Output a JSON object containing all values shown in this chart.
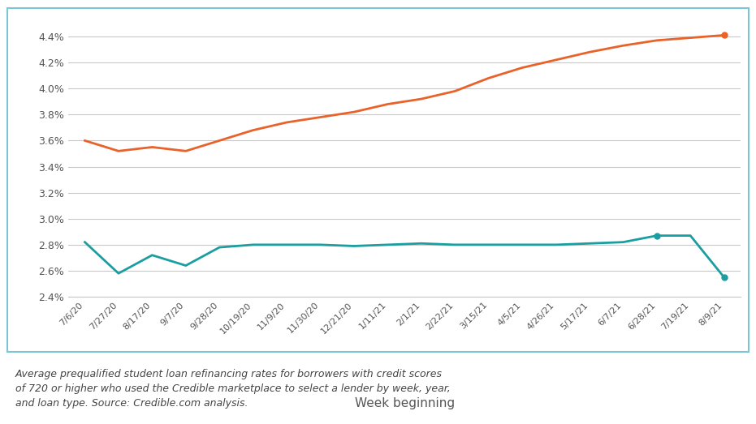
{
  "x_labels": [
    "7/6/20",
    "7/27/20",
    "8/17/20",
    "9/7/20",
    "9/28/20",
    "10/19/20",
    "11/9/20",
    "11/30/20",
    "12/21/20",
    "1/11/21",
    "2/1/21",
    "2/22/21",
    "3/15/21",
    "4/5/21",
    "4/26/21",
    "5/17/21",
    "6/7/21",
    "6/28/21",
    "7/19/21",
    "8/9/21"
  ],
  "variable_5yr": [
    2.82,
    2.58,
    2.72,
    2.64,
    2.78,
    2.8,
    2.8,
    2.8,
    2.79,
    2.8,
    2.81,
    2.8,
    2.8,
    2.8,
    2.8,
    2.81,
    2.82,
    2.87,
    2.87,
    2.55
  ],
  "fixed_10yr": [
    3.6,
    3.52,
    3.55,
    3.52,
    3.6,
    3.68,
    3.74,
    3.78,
    3.82,
    3.88,
    3.92,
    3.98,
    4.08,
    4.16,
    4.22,
    4.28,
    4.33,
    4.37,
    4.39,
    4.41
  ],
  "teal_color": "#1a9ea0",
  "orange_color": "#e8622a",
  "bg_color": "#ffffff",
  "border_color": "#7dc5d5",
  "grid_color": "#c8c8c8",
  "xlabel": "Week beginning",
  "ylim_min": 2.4,
  "ylim_max": 4.55,
  "yticks": [
    2.4,
    2.6,
    2.8,
    3.0,
    3.2,
    3.4,
    3.6,
    3.8,
    4.0,
    4.2,
    4.4
  ],
  "caption_line1": "Average prequalified student loan refinancing rates for borrowers with credit scores",
  "caption_line2": "of 720 or higher who used the Credible marketplace to select a lender by week, year,",
  "caption_line3": "and loan type. Source: Credible.com analysis."
}
